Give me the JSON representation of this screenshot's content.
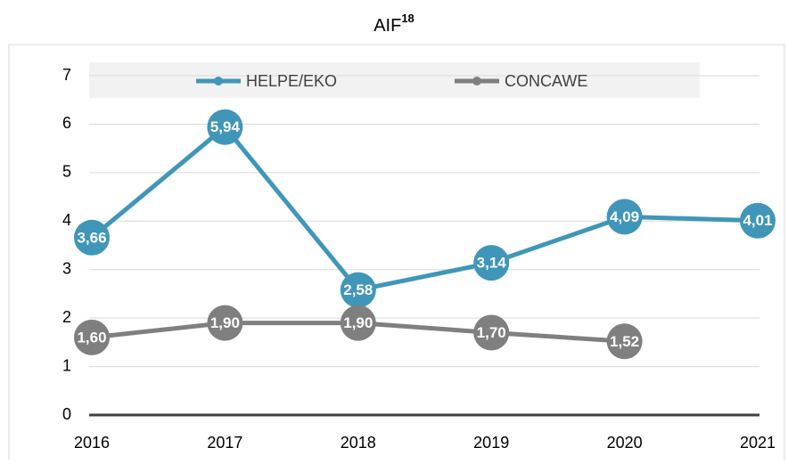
{
  "chart_data": {
    "type": "line",
    "title": "AIF",
    "title_superscript": "18",
    "x": [
      2016,
      2017,
      2018,
      2019,
      2020,
      2021
    ],
    "xlim": [
      2016,
      2021
    ],
    "xticks": [
      2016,
      2017,
      2018,
      2019,
      2020,
      2021
    ],
    "ylim": [
      0,
      7
    ],
    "yticks": [
      0,
      1,
      2,
      3,
      4,
      5,
      6,
      7
    ],
    "grid": true,
    "legend": "top",
    "series": [
      {
        "name": "HELPE/EKO",
        "color": "#4096b9",
        "values": [
          3.66,
          5.94,
          2.58,
          3.14,
          4.09,
          4.01
        ],
        "value_labels": [
          "3,66",
          "5,94",
          "2,58",
          "3,14",
          "4,09",
          "4,01"
        ]
      },
      {
        "name": "CONCAWE",
        "color": "#7f7f7f",
        "values": [
          1.6,
          1.9,
          1.9,
          1.7,
          1.52,
          null
        ],
        "value_labels": [
          "1,60",
          "1,90",
          "1,90",
          "1,70",
          "1,52",
          null
        ]
      }
    ]
  }
}
